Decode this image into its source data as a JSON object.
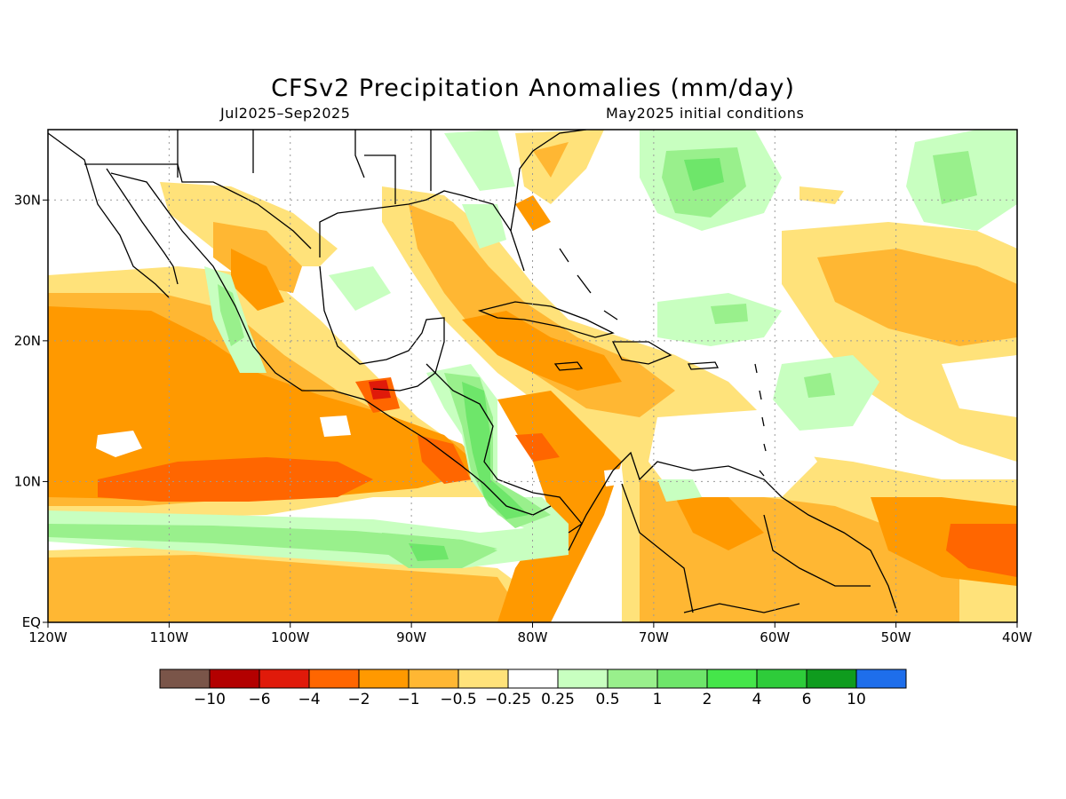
{
  "title": "CFSv2 Precipitation Anomalies (mm/day)",
  "subtitle_left": "Jul2025–Sep2025",
  "subtitle_right": "May2025 initial conditions",
  "map": {
    "lon_range": [
      -120,
      -40
    ],
    "lat_range": [
      0,
      35
    ],
    "grid": true,
    "x_ticks": [
      {
        "value": -120,
        "label": "120W"
      },
      {
        "value": -110,
        "label": "110W"
      },
      {
        "value": -100,
        "label": "100W"
      },
      {
        "value": -90,
        "label": "90W"
      },
      {
        "value": -80,
        "label": "80W"
      },
      {
        "value": -70,
        "label": "70W"
      },
      {
        "value": -60,
        "label": "60W"
      },
      {
        "value": -50,
        "label": "50W"
      },
      {
        "value": -40,
        "label": "40W"
      }
    ],
    "y_ticks": [
      {
        "value": 0,
        "label": "EQ"
      },
      {
        "value": 10,
        "label": "10N"
      },
      {
        "value": 20,
        "label": "20N"
      },
      {
        "value": 30,
        "label": "30N"
      }
    ]
  },
  "colorbar": {
    "colors": [
      "#7a5549",
      "#b30000",
      "#e01a0a",
      "#ff6600",
      "#ff9900",
      "#ffb733",
      "#ffe27a",
      "#ffffff",
      "#c8ffc0",
      "#99f08c",
      "#6ee66a",
      "#45e64a",
      "#2ecc3a",
      "#0f9c1e",
      "#1e6eeb"
    ],
    "labels": [
      "−10",
      "−6",
      "−4",
      "−2",
      "−1",
      "−0.5",
      "−0.25",
      "0.25",
      "0.5",
      "1",
      "2",
      "4",
      "6",
      "10"
    ]
  }
}
